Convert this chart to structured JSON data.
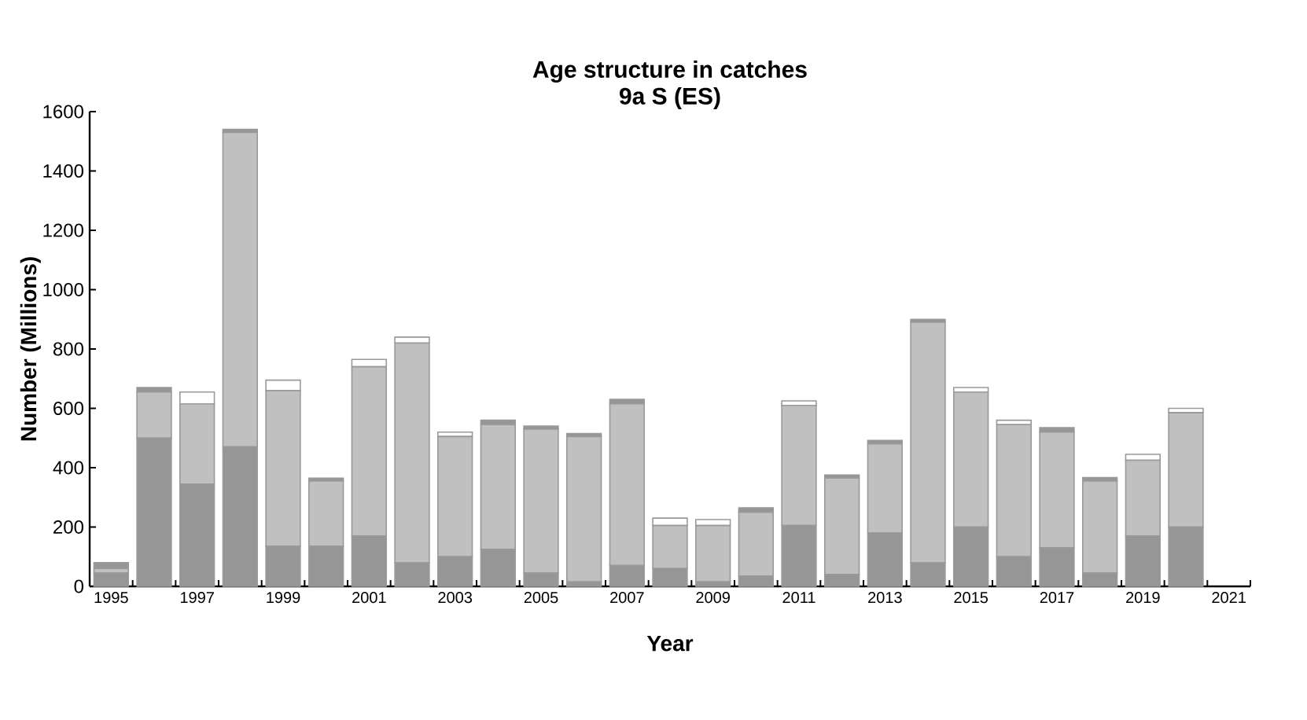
{
  "chart_data": {
    "type": "bar",
    "stacked": true,
    "title": "Age structure in catches\n9a S (ES)",
    "xlabel": "Year",
    "ylabel": "Number (Millions)",
    "categories": [
      "1995",
      null,
      "1997",
      null,
      "1999",
      null,
      "2001",
      null,
      "2003",
      null,
      "2005",
      null,
      "2007",
      null,
      "2009",
      null,
      "2011",
      null,
      "2013",
      null,
      "2015",
      null,
      "2017",
      null,
      "2019",
      null,
      "2021"
    ],
    "series": [
      {
        "color": "#969696",
        "values": [
          45,
          500,
          345,
          470,
          135,
          135,
          170,
          80,
          100,
          125,
          45,
          15,
          70,
          60,
          15,
          35,
          205,
          40,
          180,
          80,
          200,
          100,
          130,
          45,
          170,
          200,
          null
        ]
      },
      {
        "color": "#c0c0c0",
        "values": [
          15,
          155,
          270,
          1060,
          525,
          220,
          570,
          740,
          405,
          420,
          485,
          490,
          545,
          145,
          190,
          215,
          405,
          325,
          300,
          810,
          455,
          445,
          390,
          310,
          255,
          385,
          null
        ]
      },
      {
        "color": "#ffffff",
        "values": [
          null,
          null,
          40,
          null,
          35,
          null,
          25,
          20,
          15,
          null,
          null,
          null,
          null,
          25,
          20,
          null,
          15,
          null,
          null,
          null,
          15,
          15,
          null,
          null,
          20,
          15,
          null
        ]
      },
      {
        "color": "#969696",
        "values": [
          20,
          15,
          null,
          10,
          null,
          10,
          null,
          null,
          null,
          15,
          10,
          10,
          15,
          null,
          null,
          15,
          null,
          10,
          12,
          10,
          null,
          null,
          15,
          12,
          null,
          null,
          null
        ]
      }
    ],
    "ylim": [
      0,
      1600
    ],
    "yticks": [
      0,
      200,
      400,
      600,
      800,
      1000,
      1200,
      1400,
      1600
    ],
    "grid": false
  }
}
